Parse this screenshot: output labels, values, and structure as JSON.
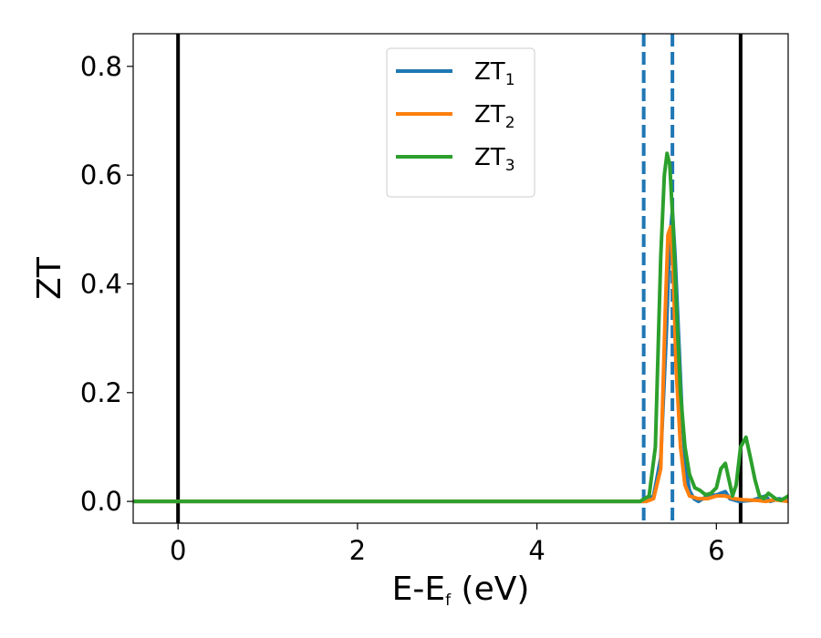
{
  "chart_data": {
    "type": "line",
    "xlabel": {
      "main": "E-E",
      "sub": "f",
      "suffix": " (eV)"
    },
    "ylabel": "ZT",
    "xlim": [
      -0.5,
      6.8
    ],
    "ylim": [
      -0.04,
      0.86
    ],
    "xticks": [
      0,
      2,
      4,
      6
    ],
    "xtick_labels": [
      "0",
      "2",
      "4",
      "6"
    ],
    "yticks": [
      0.0,
      0.2,
      0.4,
      0.6,
      0.8
    ],
    "ytick_labels": [
      "0.0",
      "0.2",
      "0.4",
      "0.6",
      "0.8"
    ],
    "grid": false,
    "legend_placement": "upper-center",
    "vertical_lines": [
      {
        "x": 0.0,
        "style": "solid",
        "color": "#000000"
      },
      {
        "x": 5.19,
        "style": "dashed",
        "color": "#1f77b4"
      },
      {
        "x": 5.51,
        "style": "dashed",
        "color": "#1f77b4"
      },
      {
        "x": 6.27,
        "style": "solid",
        "color": "#000000"
      }
    ],
    "series": [
      {
        "name": "ZT",
        "subscript": "1",
        "color": "#1f77b4",
        "x": [
          -0.5,
          5.2,
          5.3,
          5.38,
          5.44,
          5.48,
          5.51,
          5.54,
          5.58,
          5.62,
          5.66,
          5.7,
          5.75,
          5.8,
          5.9,
          6.0,
          6.1,
          6.15,
          6.25,
          6.4,
          6.55,
          6.6,
          6.7,
          6.8
        ],
        "y": [
          0.0,
          0.0,
          0.01,
          0.08,
          0.3,
          0.48,
          0.535,
          0.45,
          0.3,
          0.15,
          0.06,
          0.02,
          0.005,
          0.0,
          0.01,
          0.012,
          0.018,
          0.005,
          0.0,
          0.002,
          0.01,
          0.0,
          0.005,
          0.0
        ]
      },
      {
        "name": "ZT",
        "subscript": "2",
        "color": "#ff7f0e",
        "x": [
          -0.5,
          5.22,
          5.3,
          5.38,
          5.43,
          5.46,
          5.49,
          5.52,
          5.55,
          5.6,
          5.65,
          5.7,
          5.8,
          5.9,
          6.0,
          6.1,
          6.2,
          6.3,
          6.45,
          6.55,
          6.65,
          6.8
        ],
        "y": [
          0.0,
          0.0,
          0.005,
          0.06,
          0.35,
          0.49,
          0.505,
          0.42,
          0.25,
          0.1,
          0.03,
          0.01,
          0.005,
          0.005,
          0.01,
          0.01,
          0.005,
          0.003,
          0.002,
          0.0,
          0.003,
          0.0
        ]
      },
      {
        "name": "ZT",
        "subscript": "3",
        "color": "#2ca02c",
        "x": [
          -0.5,
          5.15,
          5.25,
          5.32,
          5.38,
          5.42,
          5.45,
          5.48,
          5.52,
          5.56,
          5.6,
          5.65,
          5.7,
          5.76,
          5.82,
          5.88,
          5.94,
          6.0,
          6.05,
          6.1,
          6.14,
          6.18,
          6.22,
          6.27,
          6.33,
          6.38,
          6.43,
          6.48,
          6.53,
          6.58,
          6.62,
          6.66,
          6.72,
          6.8
        ],
        "y": [
          0.0,
          0.0,
          0.01,
          0.1,
          0.45,
          0.6,
          0.64,
          0.62,
          0.5,
          0.34,
          0.2,
          0.1,
          0.05,
          0.025,
          0.02,
          0.012,
          0.015,
          0.025,
          0.06,
          0.07,
          0.04,
          0.01,
          0.03,
          0.1,
          0.118,
          0.08,
          0.04,
          0.01,
          0.005,
          0.015,
          0.01,
          0.005,
          0.002,
          0.01
        ]
      }
    ]
  }
}
